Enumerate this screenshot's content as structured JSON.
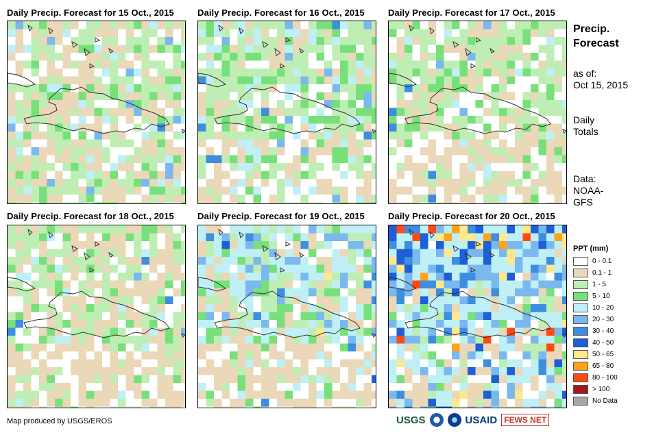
{
  "panels": [
    {
      "title": "Daily Precip. Forecast for 15 Oct., 2015",
      "date": "15 Oct"
    },
    {
      "title": "Daily Precip. Forecast for 16 Oct., 2015",
      "date": "16 Oct"
    },
    {
      "title": "Daily Precip. Forecast for 17 Oct., 2015",
      "date": "17 Oct"
    },
    {
      "title": "Daily Precip. Forecast for 18 Oct., 2015",
      "date": "18 Oct"
    },
    {
      "title": "Daily Precip. Forecast for 19 Oct., 2015",
      "date": "19 Oct"
    },
    {
      "title": "Daily Precip. Forecast for 20 Oct., 2015",
      "date": "20 Oct"
    }
  ],
  "side": {
    "title_line1": "Precip.",
    "title_line2": "Forecast",
    "asof_line1": "as of:",
    "asof_line2": "Oct 15, 2015",
    "daily_line1": "Daily",
    "daily_line2": "Totals",
    "data_line1": "Data:",
    "data_line2": "NOAA-",
    "data_line3": "GFS"
  },
  "legend": {
    "title": "PPT (mm)",
    "items": [
      {
        "label": "0 - 0.1",
        "color": "#ffffff"
      },
      {
        "label": "0.1 - 1",
        "color": "#ead8b8"
      },
      {
        "label": "1 - 5",
        "color": "#bfeeb4"
      },
      {
        "label": "5 - 10",
        "color": "#78e07a"
      },
      {
        "label": "10 - 20",
        "color": "#bff0f6"
      },
      {
        "label": "20 - 30",
        "color": "#7bb8ee"
      },
      {
        "label": "30 - 40",
        "color": "#3d8ee0"
      },
      {
        "label": "40 - 50",
        "color": "#1c5fd6"
      },
      {
        "label": "50 - 65",
        "color": "#ffe88a"
      },
      {
        "label": "65 - 80",
        "color": "#ffa21e"
      },
      {
        "label": "80 - 100",
        "color": "#ff4a12"
      },
      {
        "label": "> 100",
        "color": "#a3181c"
      },
      {
        "label": "No Data",
        "color": "#a6a6a6"
      }
    ]
  },
  "credit": "Map produced by USGS/EROS",
  "logos": {
    "usgs": "USGS",
    "usaid": "USAID",
    "fews": "FEWS NET"
  }
}
